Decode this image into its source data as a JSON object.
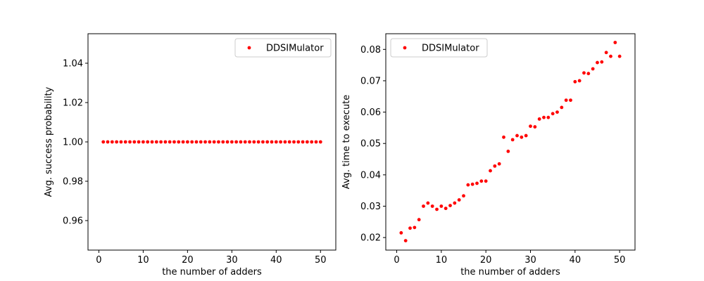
{
  "chart_data": [
    {
      "type": "scatter",
      "xlabel": "the number of adders",
      "ylabel": "Avg. success probability",
      "xlim": [
        -2.45,
        53.45
      ],
      "ylim": [
        0.945,
        1.055
      ],
      "xticks": [
        0,
        10,
        20,
        30,
        40,
        50
      ],
      "yticks": [
        0.96,
        0.98,
        1.0,
        1.02,
        1.04
      ],
      "ytick_decimals": 2,
      "grid": false,
      "legend": "top-right",
      "series": [
        {
          "name": "DDSIMulator",
          "color": "#ff0000",
          "x": [
            1,
            2,
            3,
            4,
            5,
            6,
            7,
            8,
            9,
            10,
            11,
            12,
            13,
            14,
            15,
            16,
            17,
            18,
            19,
            20,
            21,
            22,
            23,
            24,
            25,
            26,
            27,
            28,
            29,
            30,
            31,
            32,
            33,
            34,
            35,
            36,
            37,
            38,
            39,
            40,
            41,
            42,
            43,
            44,
            45,
            46,
            47,
            48,
            49,
            50
          ],
          "y": [
            1,
            1,
            1,
            1,
            1,
            1,
            1,
            1,
            1,
            1,
            1,
            1,
            1,
            1,
            1,
            1,
            1,
            1,
            1,
            1,
            1,
            1,
            1,
            1,
            1,
            1,
            1,
            1,
            1,
            1,
            1,
            1,
            1,
            1,
            1,
            1,
            1,
            1,
            1,
            1,
            1,
            1,
            1,
            1,
            1,
            1,
            1,
            1,
            1,
            1
          ]
        }
      ]
    },
    {
      "type": "scatter",
      "xlabel": "the number of adders",
      "ylabel": "Avg. time to execute",
      "xlim": [
        -2.45,
        53.45
      ],
      "ylim": [
        0.016,
        0.085
      ],
      "xticks": [
        0,
        10,
        20,
        30,
        40,
        50
      ],
      "yticks": [
        0.02,
        0.03,
        0.04,
        0.05,
        0.06,
        0.07,
        0.08
      ],
      "ytick_decimals": 2,
      "grid": false,
      "legend": "top-left",
      "series": [
        {
          "name": "DDSIMulator",
          "color": "#ff0000",
          "x": [
            1,
            2,
            3,
            4,
            5,
            6,
            7,
            8,
            9,
            10,
            11,
            12,
            13,
            14,
            15,
            16,
            17,
            18,
            19,
            20,
            21,
            22,
            23,
            24,
            25,
            26,
            27,
            28,
            29,
            30,
            31,
            32,
            33,
            34,
            35,
            36,
            37,
            38,
            39,
            40,
            41,
            42,
            43,
            44,
            45,
            46,
            47,
            48,
            49,
            50
          ],
          "y": [
            0.0215,
            0.019,
            0.023,
            0.0232,
            0.0257,
            0.03,
            0.031,
            0.03,
            0.029,
            0.03,
            0.0293,
            0.0302,
            0.031,
            0.032,
            0.0333,
            0.0368,
            0.037,
            0.0373,
            0.038,
            0.038,
            0.0413,
            0.0428,
            0.0435,
            0.052,
            0.0475,
            0.0512,
            0.0525,
            0.052,
            0.0525,
            0.0555,
            0.0553,
            0.0578,
            0.0583,
            0.0583,
            0.0595,
            0.06,
            0.0615,
            0.0638,
            0.0638,
            0.0697,
            0.07,
            0.0725,
            0.0723,
            0.0738,
            0.0758,
            0.076,
            0.079,
            0.0778,
            0.0822,
            0.0778
          ]
        }
      ]
    }
  ]
}
